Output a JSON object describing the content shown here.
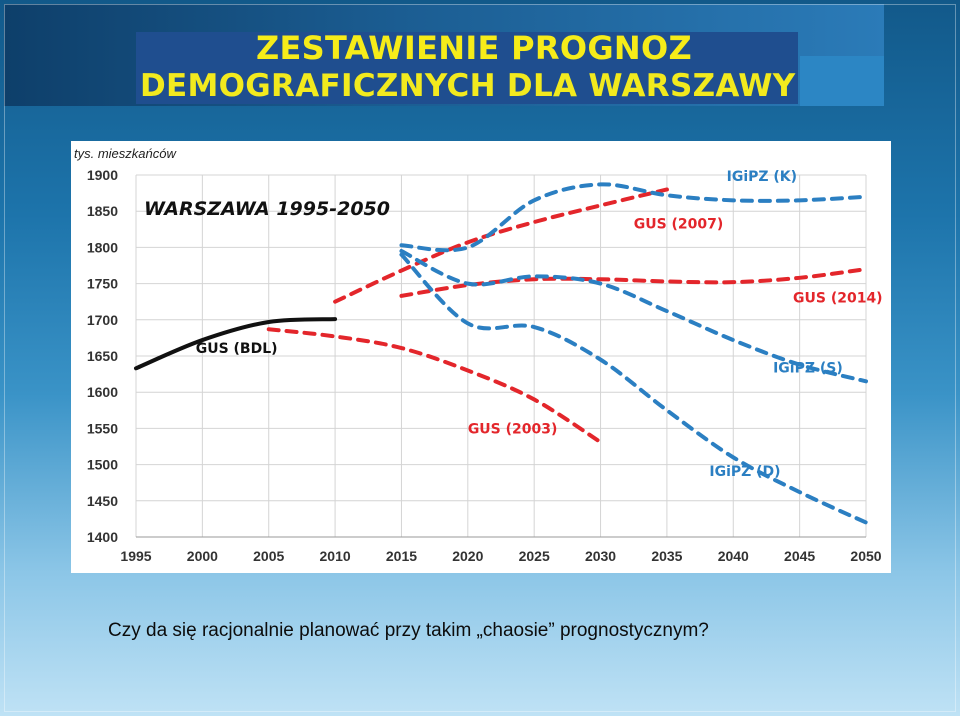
{
  "slide": {
    "title_line1": "ZESTAWIENIE PROGNOZ",
    "title_line2": "DEMOGRAFICZNYCH DLA WARSZAWY",
    "caption": "Czy da się racjonalnie planować przy takim „chaosie” prognostycznym?"
  },
  "chart_data": {
    "type": "line",
    "title": "WARSZAWA 1995-2050",
    "ylabel": "tys. mieszkańców",
    "xlabel": "",
    "xlim": [
      1995,
      2050
    ],
    "ylim": [
      1400,
      1900
    ],
    "x_ticks": [
      1995,
      2000,
      2005,
      2010,
      2015,
      2020,
      2025,
      2030,
      2035,
      2040,
      2045,
      2050
    ],
    "y_ticks": [
      1400,
      1450,
      1500,
      1550,
      1600,
      1650,
      1700,
      1750,
      1800,
      1850,
      1900
    ],
    "grid": true,
    "colors": {
      "historical": "#111111",
      "gus": "#e3262b",
      "igipz": "#2b7fc2"
    },
    "series": [
      {
        "name": "GUS (BDL)",
        "style": "solid",
        "color": "#111111",
        "x": [
          1995,
          2000,
          2005,
          2010
        ],
        "y": [
          1633,
          1672,
          1697,
          1701
        ]
      },
      {
        "name": "GUS (2003)",
        "style": "dashed",
        "color": "#e3262b",
        "x": [
          2005,
          2010,
          2015,
          2020,
          2025,
          2030
        ],
        "y": [
          1687,
          1677,
          1661,
          1630,
          1590,
          1531
        ]
      },
      {
        "name": "GUS (2007)",
        "style": "dashed",
        "color": "#e3262b",
        "x": [
          2010,
          2015,
          2020,
          2025,
          2030,
          2035
        ],
        "y": [
          1725,
          1768,
          1807,
          1835,
          1858,
          1880
        ]
      },
      {
        "name": "GUS (2014)",
        "style": "dashed",
        "color": "#e3262b",
        "x": [
          2015,
          2020,
          2025,
          2030,
          2035,
          2040,
          2045,
          2050
        ],
        "y": [
          1733,
          1748,
          1756,
          1756,
          1753,
          1752,
          1758,
          1770
        ]
      },
      {
        "name": "IGiPZ (K)",
        "style": "dashed",
        "color": "#2b7fc2",
        "x": [
          2015,
          2020,
          2025,
          2030,
          2035,
          2040,
          2045,
          2050
        ],
        "y": [
          1803,
          1800,
          1865,
          1887,
          1872,
          1865,
          1865,
          1870
        ]
      },
      {
        "name": "IGiPZ (S)",
        "style": "dashed",
        "color": "#2b7fc2",
        "x": [
          2015,
          2020,
          2025,
          2030,
          2035,
          2040,
          2045,
          2050
        ],
        "y": [
          1795,
          1750,
          1760,
          1750,
          1712,
          1672,
          1638,
          1615
        ]
      },
      {
        "name": "IGiPZ (D)",
        "style": "dashed",
        "color": "#2b7fc2",
        "x": [
          2015,
          2020,
          2025,
          2030,
          2035,
          2040,
          2045,
          2050
        ],
        "y": [
          1790,
          1695,
          1690,
          1645,
          1575,
          1510,
          1462,
          1420
        ]
      }
    ],
    "annotations": [
      {
        "text": "GUS (BDL)",
        "x": 1999.5,
        "y": 1654,
        "color": "#111111"
      },
      {
        "text": "GUS (2003)",
        "x": 2020,
        "y": 1543,
        "color": "#e3262b"
      },
      {
        "text": "GUS (2007)",
        "x": 2032.5,
        "y": 1826,
        "color": "#e3262b"
      },
      {
        "text": "GUS (2014)",
        "x": 2044.5,
        "y": 1724,
        "color": "#e3262b"
      },
      {
        "text": "IGiPZ (K)",
        "x": 2039.5,
        "y": 1892,
        "color": "#2b7fc2"
      },
      {
        "text": "IGiPZ (S)",
        "x": 2043,
        "y": 1627,
        "color": "#2b7fc2"
      },
      {
        "text": "IGiPZ (D)",
        "x": 2038.2,
        "y": 1484,
        "color": "#2b7fc2"
      }
    ]
  }
}
